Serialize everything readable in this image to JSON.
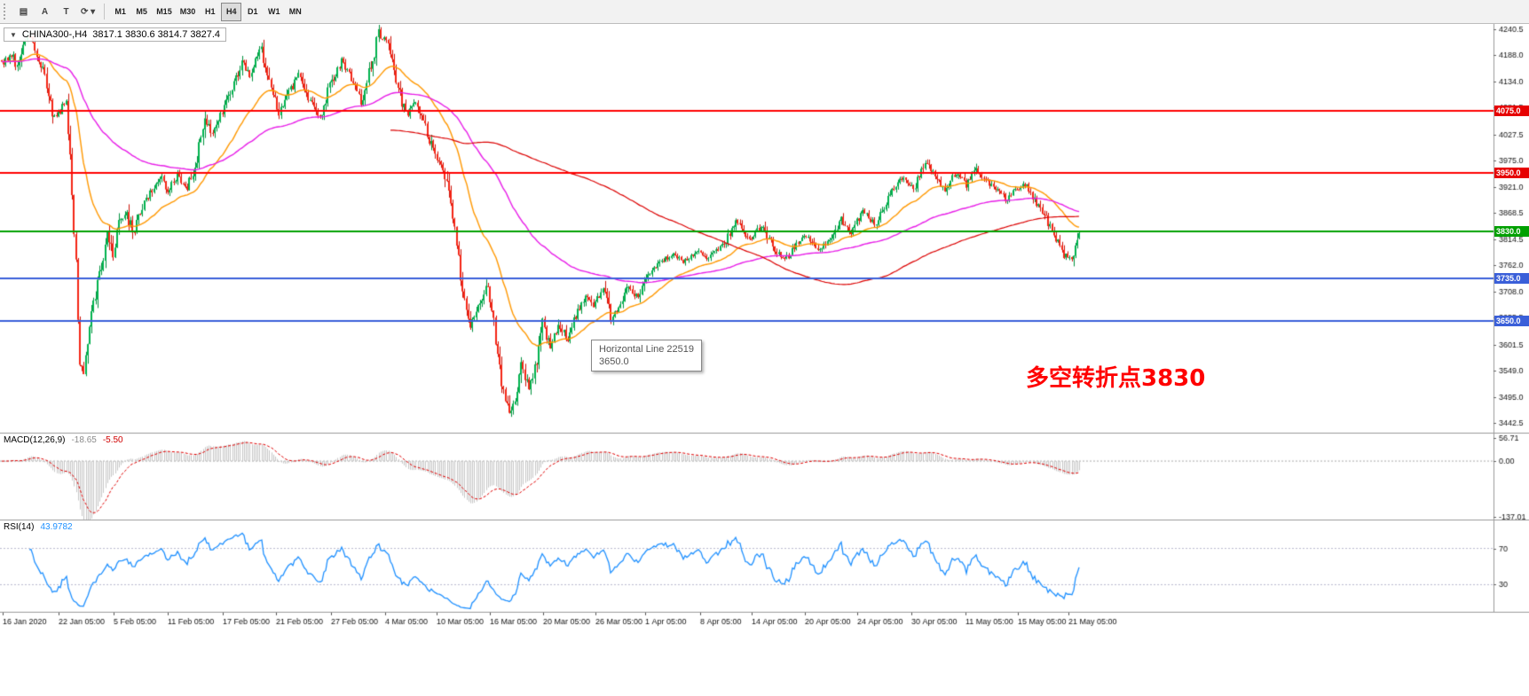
{
  "toolbar": {
    "tools": [
      {
        "name": "charts-window-icon",
        "glyph": "▤"
      },
      {
        "name": "text-annotation-tool",
        "glyph": "A"
      },
      {
        "name": "text-cursor-tool",
        "glyph": "T"
      },
      {
        "name": "cycle-symbols-tool",
        "glyph": "⟳ ▾"
      }
    ],
    "timeframes": [
      "M1",
      "M5",
      "M15",
      "M30",
      "H1",
      "H4",
      "D1",
      "W1",
      "MN"
    ],
    "active_timeframe": "H4"
  },
  "chart": {
    "symbol_info": "CHINA300-,H4",
    "ohlc": "3817.1 3830.6 3814.7 3827.4",
    "price_top": 4240.5,
    "price_bottom": 3442.5,
    "y_ticks": [
      "4240.5",
      "4188.0",
      "4134.0",
      "4081.5",
      "4027.5",
      "3975.0",
      "3921.0",
      "3868.5",
      "3814.5",
      "3762.0",
      "3708.0",
      "3655.5",
      "3601.5",
      "3549.0",
      "3495.0",
      "3442.5"
    ],
    "hlines": [
      {
        "price": 4075.0,
        "label": "4075.0",
        "color": "#ff0000",
        "badge": "#e60000"
      },
      {
        "price": 3950.0,
        "label": "3950.0",
        "color": "#ff0000",
        "badge": "#e60000"
      },
      {
        "price": 3830.0,
        "label": "3830.0",
        "color": "#00a000",
        "badge": "#00a000"
      },
      {
        "price": 3735.0,
        "label": "3735.0",
        "color": "#3a5fd9",
        "badge": "#3a5fd9"
      },
      {
        "price": 3650.0,
        "label": "3650.0",
        "color": "#3a5fd9",
        "badge": "#3a5fd9"
      }
    ],
    "x_labels": [
      {
        "label": "16 Jan 2020",
        "x": 3
      },
      {
        "label": "22 Jan 05:00",
        "x": 66
      },
      {
        "label": "5 Feb 05:00",
        "x": 128
      },
      {
        "label": "11 Feb 05:00",
        "x": 189
      },
      {
        "label": "17 Feb 05:00",
        "x": 251
      },
      {
        "label": "21 Feb 05:00",
        "x": 311
      },
      {
        "label": "27 Feb 05:00",
        "x": 373
      },
      {
        "label": "4 Mar 05:00",
        "x": 434
      },
      {
        "label": "10 Mar 05:00",
        "x": 492
      },
      {
        "label": "16 Mar 05:00",
        "x": 552
      },
      {
        "label": "20 Mar 05:00",
        "x": 612
      },
      {
        "label": "26 Mar 05:00",
        "x": 671
      },
      {
        "label": "1 Apr 05:00",
        "x": 727
      },
      {
        "label": "8 Apr 05:00",
        "x": 789
      },
      {
        "label": "14 Apr 05:00",
        "x": 847
      },
      {
        "label": "20 Apr 05:00",
        "x": 907
      },
      {
        "label": "24 Apr 05:00",
        "x": 966
      },
      {
        "label": "30 Apr 05:00",
        "x": 1027
      },
      {
        "label": "11 May 05:00",
        "x": 1088
      },
      {
        "label": "15 May 05:00",
        "x": 1147
      },
      {
        "label": "21 May 05:00",
        "x": 1204
      }
    ],
    "tooltip": {
      "title": "Horizontal Line 22519",
      "value": "3650.0"
    },
    "annotation": "多空转折点3830"
  },
  "macd": {
    "name": "MACD(12,26,9)",
    "value_main": "-18.65",
    "value_signal": "-5.50",
    "max": 56.71,
    "min": -137.01,
    "ticks": [
      {
        "v": 56.71,
        "label": "56.71"
      },
      {
        "v": 0,
        "label": "0.00"
      },
      {
        "v": -137.01,
        "label": "-137.01"
      }
    ]
  },
  "rsi": {
    "name": "RSI(14)",
    "value": "43.9782",
    "levels": [
      70,
      30
    ],
    "scale_min": 5,
    "scale_max": 95
  },
  "chart_data": {
    "type": "candlestick",
    "symbol": "CHINA300-",
    "timeframe": "H4",
    "candle_count": 553,
    "last_candle": {
      "open": 3817.1,
      "high": 3830.6,
      "low": 3814.7,
      "close": 3827.4
    },
    "up_color": "#00b24e",
    "down_color": "#f42515",
    "moving_averages": [
      {
        "period": 34,
        "color": "#ff9800",
        "type": "ema"
      },
      {
        "period": 110,
        "color": "#e81ee8",
        "type": "ema"
      },
      {
        "period": 200,
        "color": "#dc0000",
        "type": "sma"
      }
    ],
    "trend_anchors": [
      [
        0,
        4170
      ],
      [
        5,
        4190
      ],
      [
        8,
        4160
      ],
      [
        11,
        4215
      ],
      [
        15,
        4230
      ],
      [
        18,
        4180
      ],
      [
        22,
        4150
      ],
      [
        26,
        4060
      ],
      [
        30,
        4075
      ],
      [
        33,
        4095
      ],
      [
        35,
        3990
      ],
      [
        38,
        3760
      ],
      [
        40,
        3570
      ],
      [
        42,
        3545
      ],
      [
        45,
        3640
      ],
      [
        48,
        3700
      ],
      [
        51,
        3760
      ],
      [
        54,
        3835
      ],
      [
        57,
        3790
      ],
      [
        60,
        3845
      ],
      [
        64,
        3870
      ],
      [
        67,
        3825
      ],
      [
        72,
        3880
      ],
      [
        76,
        3910
      ],
      [
        81,
        3945
      ],
      [
        85,
        3915
      ],
      [
        90,
        3945
      ],
      [
        95,
        3920
      ],
      [
        99,
        3965
      ],
      [
        104,
        4060
      ],
      [
        108,
        4030
      ],
      [
        113,
        4075
      ],
      [
        117,
        4110
      ],
      [
        123,
        4175
      ],
      [
        127,
        4150
      ],
      [
        133,
        4200
      ],
      [
        137,
        4140
      ],
      [
        142,
        4065
      ],
      [
        146,
        4105
      ],
      [
        152,
        4145
      ],
      [
        158,
        4095
      ],
      [
        163,
        4060
      ],
      [
        168,
        4125
      ],
      [
        174,
        4175
      ],
      [
        180,
        4135
      ],
      [
        184,
        4095
      ],
      [
        189,
        4165
      ],
      [
        193,
        4230
      ],
      [
        197,
        4215
      ],
      [
        201,
        4150
      ],
      [
        207,
        4065
      ],
      [
        212,
        4095
      ],
      [
        217,
        4040
      ],
      [
        222,
        3985
      ],
      [
        226,
        3955
      ],
      [
        230,
        3885
      ],
      [
        233,
        3805
      ],
      [
        236,
        3705
      ],
      [
        240,
        3645
      ],
      [
        245,
        3685
      ],
      [
        249,
        3730
      ],
      [
        252,
        3645
      ],
      [
        256,
        3530
      ],
      [
        260,
        3465
      ],
      [
        263,
        3495
      ],
      [
        266,
        3555
      ],
      [
        270,
        3510
      ],
      [
        274,
        3575
      ],
      [
        277,
        3640
      ],
      [
        281,
        3600
      ],
      [
        285,
        3645
      ],
      [
        290,
        3610
      ],
      [
        294,
        3660
      ],
      [
        299,
        3700
      ],
      [
        303,
        3675
      ],
      [
        308,
        3715
      ],
      [
        312,
        3655
      ],
      [
        317,
        3685
      ],
      [
        321,
        3720
      ],
      [
        326,
        3695
      ],
      [
        331,
        3740
      ],
      [
        337,
        3765
      ],
      [
        343,
        3785
      ],
      [
        349,
        3770
      ],
      [
        356,
        3790
      ],
      [
        362,
        3775
      ],
      [
        369,
        3800
      ],
      [
        376,
        3850
      ],
      [
        383,
        3815
      ],
      [
        390,
        3845
      ],
      [
        395,
        3795
      ],
      [
        401,
        3770
      ],
      [
        407,
        3805
      ],
      [
        413,
        3825
      ],
      [
        418,
        3790
      ],
      [
        424,
        3815
      ],
      [
        430,
        3855
      ],
      [
        435,
        3830
      ],
      [
        441,
        3870
      ],
      [
        447,
        3845
      ],
      [
        455,
        3905
      ],
      [
        461,
        3940
      ],
      [
        467,
        3915
      ],
      [
        473,
        3975
      ],
      [
        478,
        3945
      ],
      [
        483,
        3915
      ],
      [
        489,
        3950
      ],
      [
        494,
        3925
      ],
      [
        499,
        3955
      ],
      [
        504,
        3935
      ],
      [
        510,
        3915
      ],
      [
        514,
        3895
      ],
      [
        519,
        3915
      ],
      [
        524,
        3925
      ],
      [
        529,
        3895
      ],
      [
        534,
        3865
      ],
      [
        539,
        3825
      ],
      [
        544,
        3785
      ],
      [
        548,
        3775
      ],
      [
        551,
        3815
      ],
      [
        552,
        3827
      ]
    ]
  }
}
